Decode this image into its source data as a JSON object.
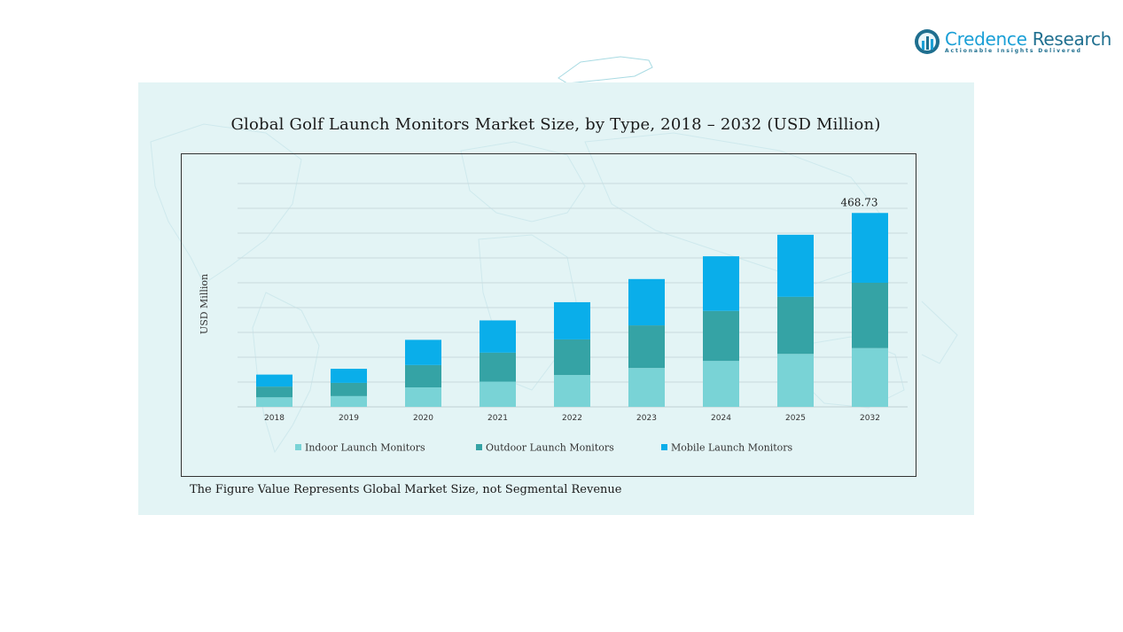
{
  "logo": {
    "name_part1": "Credence",
    "name_part2": " Research",
    "tagline": "Actionable Insights Delivered",
    "icon": "bar-chart-globe-icon"
  },
  "footnote": "The Figure Value Represents Global Market Size, not Segmental Revenue",
  "colors": {
    "panel_bg": "#e3f4f5",
    "indoor": "#79d3d6",
    "outdoor": "#35a3a5",
    "mobile": "#0aaeea"
  },
  "chart_data": {
    "type": "bar",
    "stacked": true,
    "title": "Global Golf Launch Monitors Market Size, by Type, 2018 – 2032 (USD Million)",
    "ylabel": "USD Million",
    "xlabel": "",
    "categories": [
      "2018",
      "2019",
      "2020",
      "2021",
      "2022",
      "2023",
      "2024",
      "2025",
      "2032"
    ],
    "series": [
      {
        "name": "Indoor Launch Monitors",
        "color": "#79d3d6",
        "values": [
          23,
          26,
          47,
          61,
          77,
          94,
          111,
          128,
          142
        ]
      },
      {
        "name": "Outdoor Launch Monitors",
        "color": "#35a3a5",
        "values": [
          26,
          32,
          54,
          70,
          86,
          103,
          121,
          138,
          158
        ]
      },
      {
        "name": "Mobile Launch Monitors",
        "color": "#0aaeea",
        "values": [
          29,
          34,
          61,
          78,
          90,
          112,
          132,
          150,
          168.73
        ]
      }
    ],
    "annotations": [
      {
        "category": "2032",
        "text": "468.73"
      }
    ],
    "ylim": [
      0,
      540
    ],
    "grid": true,
    "legend_position": "bottom"
  }
}
